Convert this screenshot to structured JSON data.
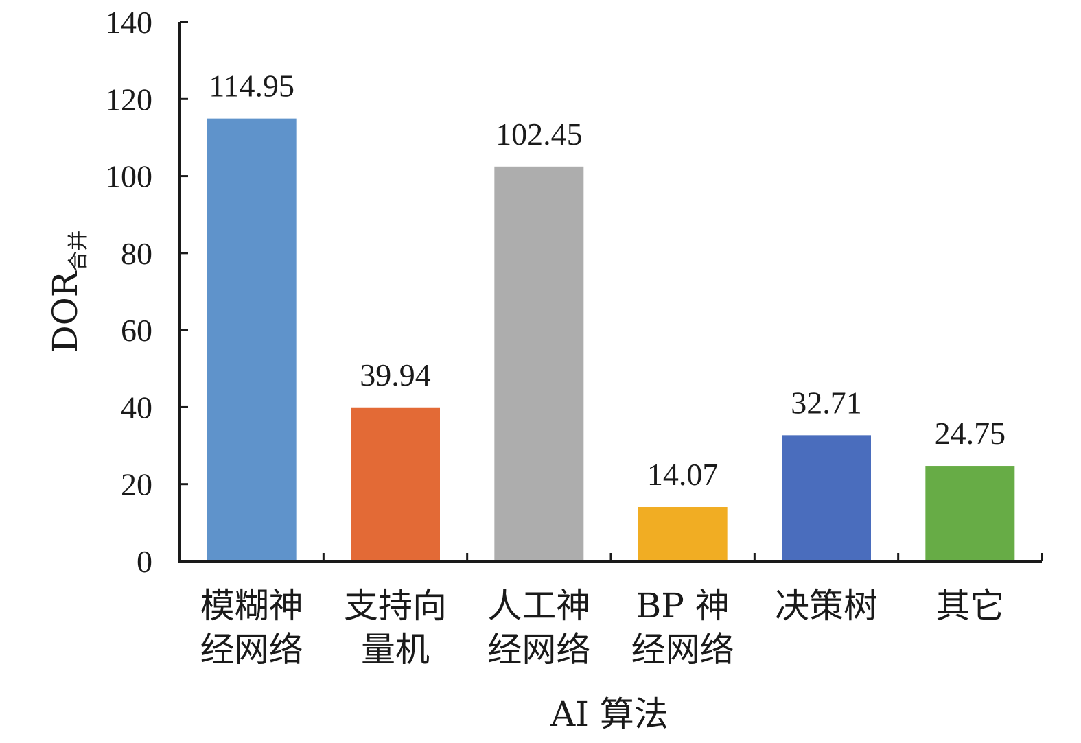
{
  "chart_data": {
    "type": "bar",
    "categories": [
      [
        "模糊神",
        "经网络"
      ],
      [
        "支持向",
        "量机"
      ],
      [
        "人工神",
        "经网络"
      ],
      [
        "BP 神",
        "经网络"
      ],
      [
        "决策树"
      ],
      [
        "其它"
      ]
    ],
    "values": [
      114.95,
      39.94,
      102.45,
      14.07,
      32.71,
      24.75
    ],
    "value_labels": [
      "114.95",
      "39.94",
      "102.45",
      "14.07",
      "32.71",
      "24.75"
    ],
    "colors": [
      "#5f93cb",
      "#e36a36",
      "#adadad",
      "#f1ad23",
      "#4a6dbd",
      "#67ac46"
    ],
    "xlabel": "AI 算法",
    "ylabel": {
      "main": "DOR",
      "subscript": "合并"
    },
    "ylim": [
      0,
      140
    ],
    "yticks": [
      0,
      20,
      40,
      60,
      80,
      100,
      120,
      140
    ],
    "grid": false,
    "legend": "none"
  }
}
